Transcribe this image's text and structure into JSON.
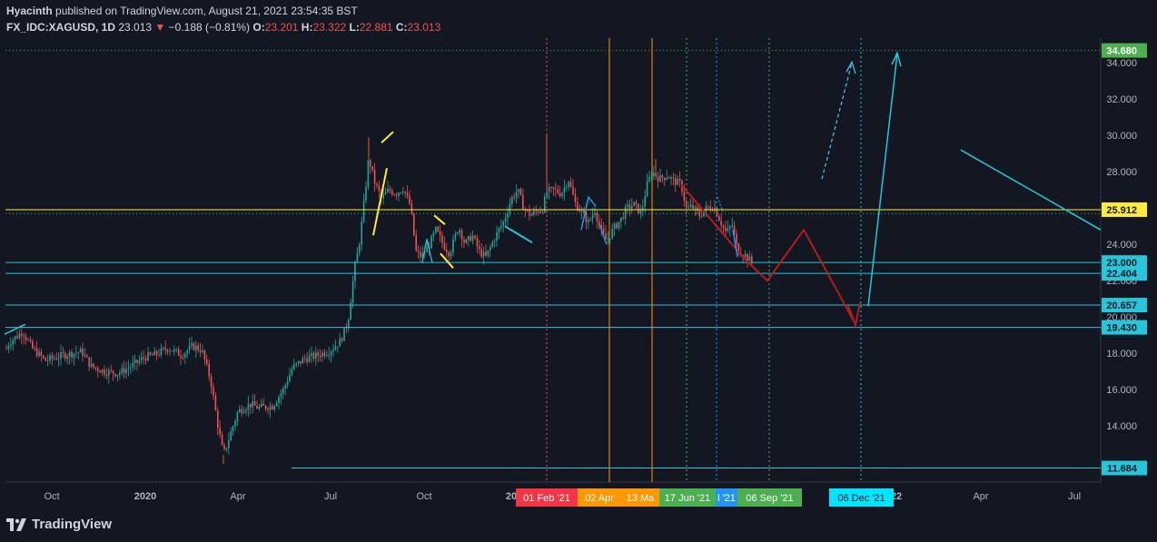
{
  "header": {
    "author": "Hyacinth",
    "published_text": "published on TradingView.com, August 21, 2021 23:54:35 BST",
    "symbol": "FX_IDC:XAGUSD, 1D",
    "last": "23.013",
    "change": "−0.188 (−0.81%)",
    "o_label": "O:",
    "o_value": "23.201",
    "h_label": "H:",
    "h_value": "23.322",
    "l_label": "L:",
    "l_value": "22.881",
    "c_label": "C:",
    "c_value": "23.013"
  },
  "footer": {
    "brand": "TradingView"
  },
  "colors": {
    "background": "#131722",
    "up": "#26a69a",
    "down": "#ef5350",
    "cyan": "#26c6da",
    "yellow": "#ffeb3b",
    "orange": "#ff9800",
    "dark_red": "#b71c1c",
    "green": "#4caf50",
    "blue": "#2196f3"
  },
  "chart_data": {
    "type": "candlestick",
    "title": "",
    "x_ticks": [
      "Oct",
      "2020",
      "Apr",
      "Jul",
      "Oct",
      "20",
      "Apr",
      "Jul",
      "ct",
      "22",
      "Apr",
      "Jul"
    ],
    "y_ticks": [
      "14.000",
      "16.000",
      "18.000",
      "20.000",
      "22.000",
      "24.000",
      "26.000",
      "28.000",
      "30.000",
      "32.000",
      "34.000"
    ],
    "ylim": [
      11,
      35.4
    ],
    "price_labels": [
      {
        "text": "34.680",
        "value": 34.68,
        "color": "#4caf50"
      },
      {
        "text": "25.912",
        "value": 25.912,
        "color": "#ffeb3b"
      },
      {
        "text": "23.000",
        "value": 23.0,
        "color": "#26c6da"
      },
      {
        "text": "22.404",
        "value": 22.404,
        "color": "#26c6da"
      },
      {
        "text": "20.657",
        "value": 20.657,
        "color": "#26c6da"
      },
      {
        "text": "19.430",
        "value": 19.43,
        "color": "#26c6da"
      },
      {
        "text": "11.684",
        "value": 11.684,
        "color": "#26c6da"
      }
    ],
    "date_labels": [
      {
        "text": "01 Feb '21",
        "color": "#f23645"
      },
      {
        "text": "02 Apr",
        "color": "#ff9800"
      },
      {
        "text": "13 Ma",
        "color": "#ff9800"
      },
      {
        "text": "17 Jun '21",
        "color": "#4caf50"
      },
      {
        "text": "l '21",
        "color": "#2196f3"
      },
      {
        "text": "06 Sep '21",
        "color": "#4caf50"
      },
      {
        "text": "06 Dec '21",
        "color": "#00e5ff"
      }
    ],
    "price_path": [
      [
        0,
        17.4
      ],
      [
        10,
        18.6
      ],
      [
        25,
        19.2
      ],
      [
        35,
        18.3
      ],
      [
        50,
        17.6
      ],
      [
        70,
        17.9
      ],
      [
        90,
        18.1
      ],
      [
        100,
        17.3
      ],
      [
        115,
        17.0
      ],
      [
        130,
        16.9
      ],
      [
        145,
        17.3
      ],
      [
        160,
        17.8
      ],
      [
        170,
        17.9
      ],
      [
        185,
        18.3
      ],
      [
        200,
        17.9
      ],
      [
        212,
        18.4
      ],
      [
        222,
        18.2
      ],
      [
        232,
        16.5
      ],
      [
        240,
        14.0
      ],
      [
        246,
        12.4
      ],
      [
        252,
        13.3
      ],
      [
        262,
        14.8
      ],
      [
        275,
        15.2
      ],
      [
        285,
        15.0
      ],
      [
        300,
        15.1
      ],
      [
        312,
        16.0
      ],
      [
        322,
        17.2
      ],
      [
        335,
        17.7
      ],
      [
        350,
        17.9
      ],
      [
        365,
        18.2
      ],
      [
        375,
        18.7
      ],
      [
        383,
        19.7
      ],
      [
        390,
        22.5
      ],
      [
        396,
        24.2
      ],
      [
        402,
        26.8
      ],
      [
        406,
        28.8
      ],
      [
        412,
        27.5
      ],
      [
        420,
        26.5
      ],
      [
        428,
        27.0
      ],
      [
        436,
        26.8
      ],
      [
        444,
        27.1
      ],
      [
        452,
        26.1
      ],
      [
        458,
        23.6
      ],
      [
        464,
        23.3
      ],
      [
        472,
        23.9
      ],
      [
        480,
        24.8
      ],
      [
        488,
        24.0
      ],
      [
        495,
        23.5
      ],
      [
        505,
        25.0
      ],
      [
        512,
        24.0
      ],
      [
        520,
        24.5
      ],
      [
        528,
        23.6
      ],
      [
        535,
        23.3
      ],
      [
        545,
        24.4
      ],
      [
        555,
        25.3
      ],
      [
        563,
        26.5
      ],
      [
        570,
        27.0
      ],
      [
        577,
        26.0
      ],
      [
        584,
        25.6
      ],
      [
        590,
        25.8
      ],
      [
        598,
        26.0
      ],
      [
        602,
        26.9
      ],
      [
        610,
        27.0
      ],
      [
        618,
        26.8
      ],
      [
        626,
        27.6
      ],
      [
        633,
        26.3
      ],
      [
        640,
        25.8
      ],
      [
        648,
        25.2
      ],
      [
        655,
        25.9
      ],
      [
        662,
        24.7
      ],
      [
        668,
        24.2
      ],
      [
        676,
        24.9
      ],
      [
        684,
        25.4
      ],
      [
        690,
        26.0
      ],
      [
        698,
        26.2
      ],
      [
        706,
        25.7
      ],
      [
        712,
        27.2
      ],
      [
        718,
        28.0
      ],
      [
        726,
        27.6
      ],
      [
        734,
        27.8
      ],
      [
        742,
        27.5
      ],
      [
        750,
        27.3
      ],
      [
        756,
        25.9
      ],
      [
        762,
        26.1
      ],
      [
        770,
        25.6
      ],
      [
        778,
        26.0
      ],
      [
        786,
        26.1
      ],
      [
        793,
        25.3
      ],
      [
        800,
        24.6
      ],
      [
        806,
        25.1
      ],
      [
        812,
        23.7
      ],
      [
        818,
        23.5
      ],
      [
        824,
        23.2
      ],
      [
        829,
        23.0
      ]
    ],
    "levels": [
      34.68,
      25.912,
      23.0,
      22.404,
      20.657,
      19.43,
      11.684
    ],
    "annotations": {
      "cyan_arrow_up": [
        [
          956,
          20.6
        ],
        [
          988,
          34.5
        ]
      ],
      "cyan_dashed_arrow": [
        [
          905,
          27.6
        ],
        [
          938,
          34.0
        ]
      ],
      "red_projection": [
        [
          750,
          27.3
        ],
        [
          818,
          23.3
        ],
        [
          845,
          22.0
        ],
        [
          885,
          24.8
        ],
        [
          942,
          19.6
        ]
      ],
      "cyan_descending_line": [
        [
          1058,
          29.2
        ],
        [
          1212,
          24.8
        ]
      ]
    }
  }
}
